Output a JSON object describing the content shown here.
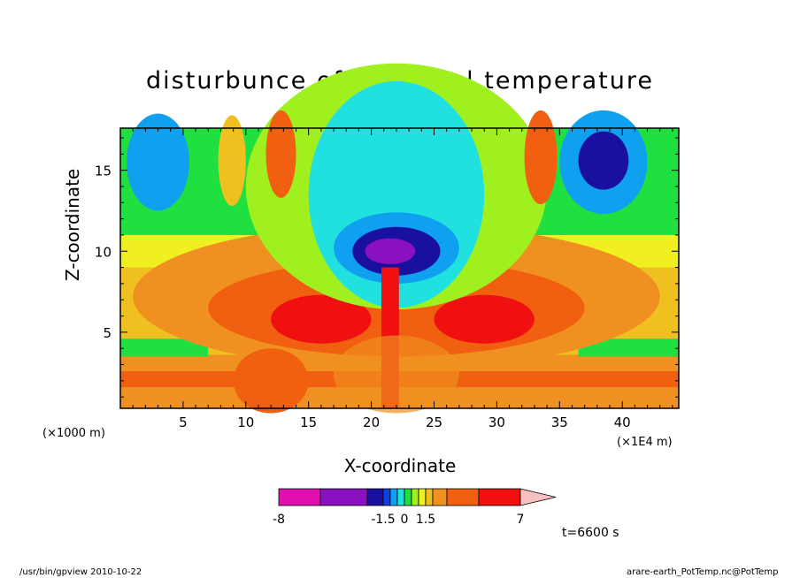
{
  "chart_data": {
    "type": "heatmap",
    "title": "disturbunce of potential temperature",
    "xlabel": "X-coordinate",
    "ylabel": "Z-coordinate",
    "x_scale_note": "(×1E4 m)",
    "y_scale_note": "(×1000 m)",
    "x_ticks": [
      5,
      10,
      15,
      20,
      25,
      30,
      35,
      40
    ],
    "y_ticks": [
      5,
      10,
      15
    ],
    "xlim": [
      0,
      44.5
    ],
    "ylim": [
      0.3,
      17.6
    ],
    "colorbar": {
      "labels": [
        "-8",
        "-1.5",
        "0",
        "1.5",
        "7"
      ],
      "levels": [
        -8,
        -5,
        -2,
        -1.5,
        -1,
        -0.5,
        0,
        0.5,
        1,
        1.5,
        2,
        3,
        5,
        7
      ],
      "colors": [
        "#e010b0",
        "#8a10c0",
        "#1a10a0",
        "#1040e0",
        "#10a0f0",
        "#20e0e0",
        "#20e040",
        "#a0f020",
        "#f0f020",
        "#f0c020",
        "#f09020",
        "#f06010",
        "#f01010",
        "#f08080",
        "#f8c0c0"
      ]
    },
    "time_label": "t=6600 s"
  },
  "footer": {
    "left": "/usr/bin/gpview   2010-10-22",
    "right": "arare-earth_PotTemp.nc@PotTemp"
  }
}
